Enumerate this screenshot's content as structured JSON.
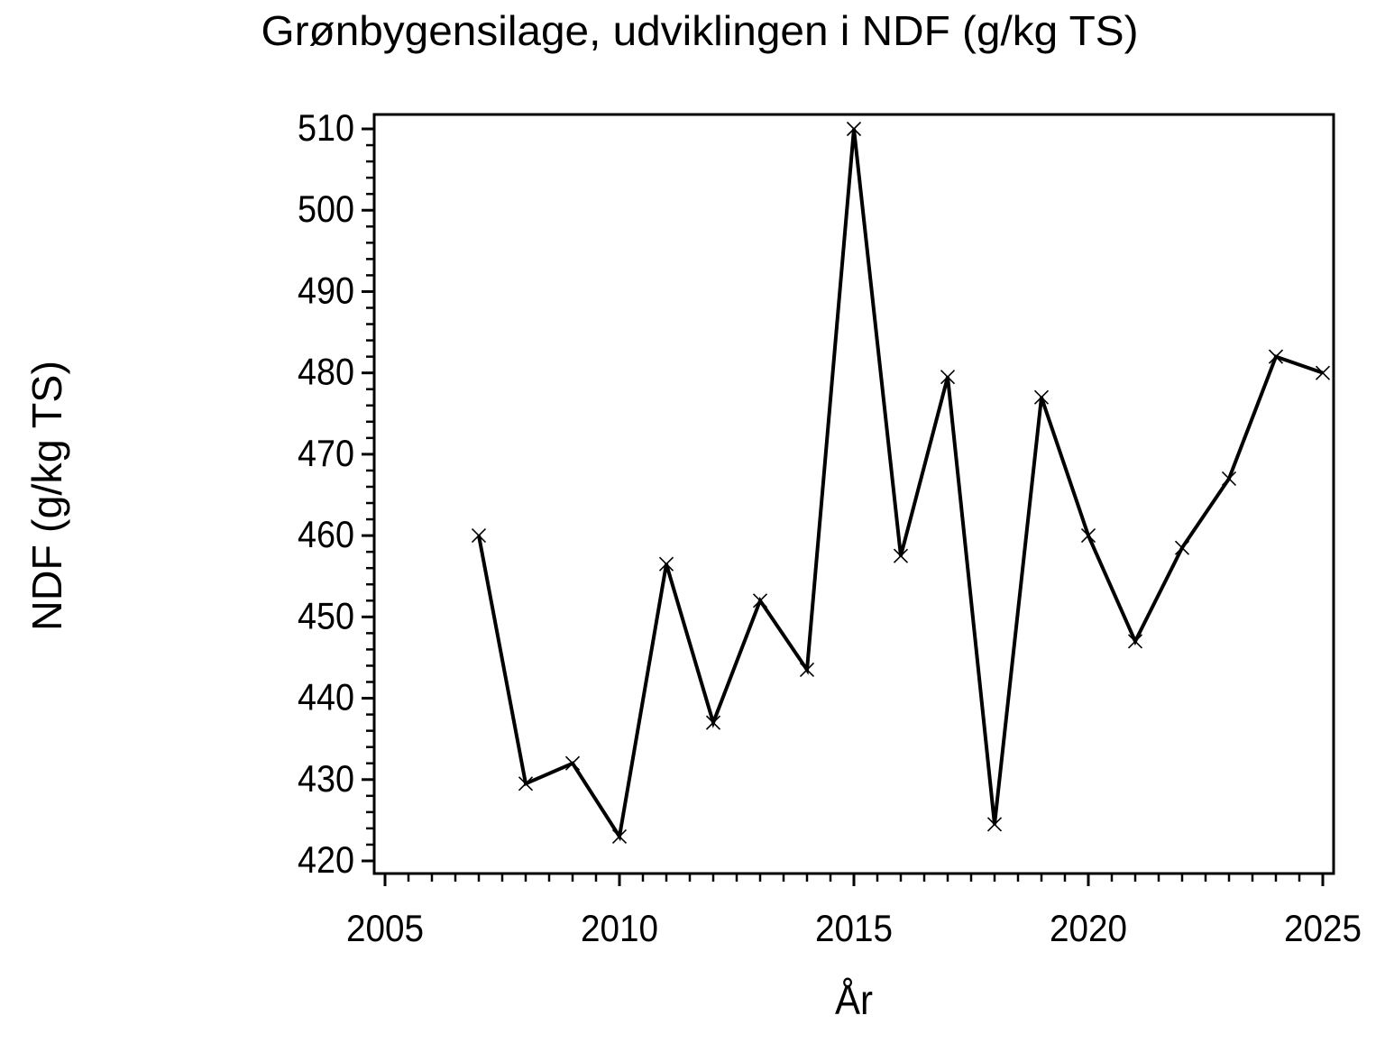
{
  "chart_data": {
    "type": "line",
    "title": "Grønbygensilage, udviklingen i NDF (g/kg TS)",
    "xlabel": "År",
    "ylabel": "NDF (g/kg TS)",
    "x": [
      2007,
      2008,
      2009,
      2010,
      2011,
      2012,
      2013,
      2014,
      2015,
      2016,
      2017,
      2018,
      2019,
      2020,
      2021,
      2022,
      2023,
      2024,
      2025
    ],
    "values": [
      460,
      429.5,
      432,
      423,
      456.5,
      437,
      452,
      443.5,
      510,
      457.5,
      479.5,
      424.5,
      477,
      460,
      447,
      458.5,
      467,
      482,
      480
    ],
    "series_name": "NDF",
    "x_major_ticks": [
      2005,
      2010,
      2015,
      2020,
      2025
    ],
    "x_minor_step": 0.5,
    "x_tick_range": [
      2005,
      2025
    ],
    "y_major_ticks": [
      420,
      430,
      440,
      450,
      460,
      470,
      480,
      490,
      500,
      510
    ],
    "y_minor_step": 2,
    "y_tick_range": [
      420,
      510
    ],
    "xlim": [
      2004.75,
      2025.25
    ],
    "ylim": [
      418.5,
      511.8
    ],
    "grid": false,
    "legend": null,
    "marker": "x",
    "line_color": "#000000",
    "axis_color": "#000000",
    "background_color": "#ffffff"
  }
}
